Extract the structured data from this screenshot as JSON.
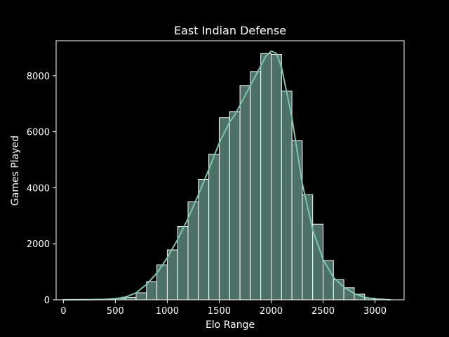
{
  "chart_data": {
    "type": "bar",
    "title": "East Indian Defense",
    "xlabel": "Elo Range",
    "ylabel": "Games Played",
    "xlim": [
      -70,
      3280
    ],
    "ylim": [
      0,
      9250
    ],
    "x_ticks": [
      0,
      500,
      1000,
      1500,
      2000,
      2500,
      3000
    ],
    "y_ticks": [
      0,
      2000,
      4000,
      6000,
      8000
    ],
    "grid": false,
    "bin_width": 100,
    "bins_start": [
      100,
      200,
      300,
      400,
      500,
      600,
      700,
      800,
      900,
      1000,
      1100,
      1200,
      1300,
      1400,
      1500,
      1600,
      1700,
      1800,
      1900,
      2000,
      2100,
      2200,
      2300,
      2400,
      2500,
      2600,
      2700,
      2800,
      2900,
      3000
    ],
    "values": [
      5,
      10,
      15,
      25,
      50,
      90,
      250,
      650,
      1250,
      1780,
      2620,
      3500,
      4300,
      5200,
      6500,
      6720,
      7650,
      8150,
      8790,
      8760,
      7450,
      5680,
      3750,
      2700,
      1400,
      720,
      430,
      200,
      60,
      15
    ],
    "kde_curve": {
      "x": [
        0,
        200,
        400,
        500,
        600,
        700,
        800,
        900,
        1000,
        1100,
        1200,
        1300,
        1400,
        1500,
        1600,
        1650,
        1700,
        1800,
        1900,
        1950,
        2000,
        2050,
        2100,
        2200,
        2300,
        2400,
        2500,
        2600,
        2700,
        2800,
        2900,
        3000,
        3150
      ],
      "y": [
        0,
        5,
        15,
        40,
        100,
        250,
        550,
        950,
        1500,
        2150,
        2900,
        3750,
        4650,
        5600,
        6350,
        6600,
        6950,
        7650,
        8350,
        8700,
        8880,
        8800,
        8300,
        6500,
        4150,
        2500,
        1450,
        800,
        450,
        220,
        90,
        30,
        0
      ]
    },
    "colors": {
      "background": "#000000",
      "bar_fill": "#4d7069",
      "bar_edge": "#ffffff",
      "kde_line": "#7fc3ae",
      "text": "#ffffff",
      "axes": "#ffffff"
    }
  }
}
